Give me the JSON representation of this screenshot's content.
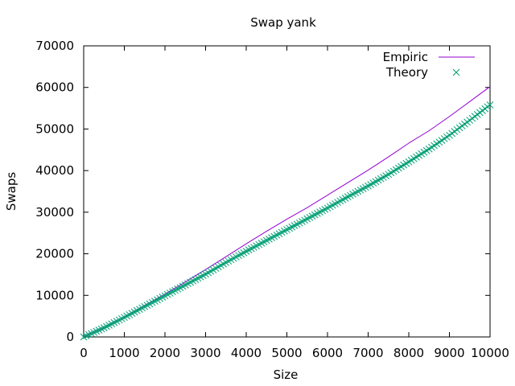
{
  "chart_data": {
    "type": "line",
    "title": "Swap yank",
    "xlabel": "Size",
    "ylabel": "Swaps",
    "xlim": [
      0,
      10000
    ],
    "ylim": [
      0,
      70000
    ],
    "xticks": [
      0,
      1000,
      2000,
      3000,
      4000,
      5000,
      6000,
      7000,
      8000,
      9000,
      10000
    ],
    "yticks": [
      0,
      10000,
      20000,
      30000,
      40000,
      50000,
      60000,
      70000
    ],
    "grid": false,
    "legend_position": "top-right",
    "series": [
      {
        "name": "Empiric",
        "style": "line",
        "color": "#9400d3",
        "x": [
          0,
          500,
          1000,
          1500,
          2000,
          2500,
          3000,
          3500,
          4000,
          4500,
          5000,
          5500,
          6000,
          6500,
          7000,
          7500,
          8000,
          8500,
          9000,
          9500,
          10000
        ],
        "y": [
          0,
          2200,
          4800,
          7600,
          10300,
          13200,
          16200,
          19300,
          22400,
          25400,
          28300,
          31100,
          34100,
          37100,
          40100,
          43300,
          46600,
          49600,
          53000,
          56600,
          60200
        ]
      },
      {
        "name": "Theory",
        "style": "points",
        "marker": "x",
        "color": "#009e73",
        "x": [
          0,
          500,
          1000,
          1500,
          2000,
          2500,
          3000,
          3500,
          4000,
          4500,
          5000,
          5500,
          6000,
          6500,
          7000,
          7500,
          8000,
          8500,
          9000,
          9500,
          10000
        ],
        "y": [
          0,
          2200,
          4700,
          7300,
          9900,
          12500,
          15100,
          17900,
          20600,
          23200,
          25800,
          28400,
          31000,
          33700,
          36300,
          39100,
          42100,
          45200,
          48500,
          52100,
          55800
        ]
      }
    ]
  }
}
